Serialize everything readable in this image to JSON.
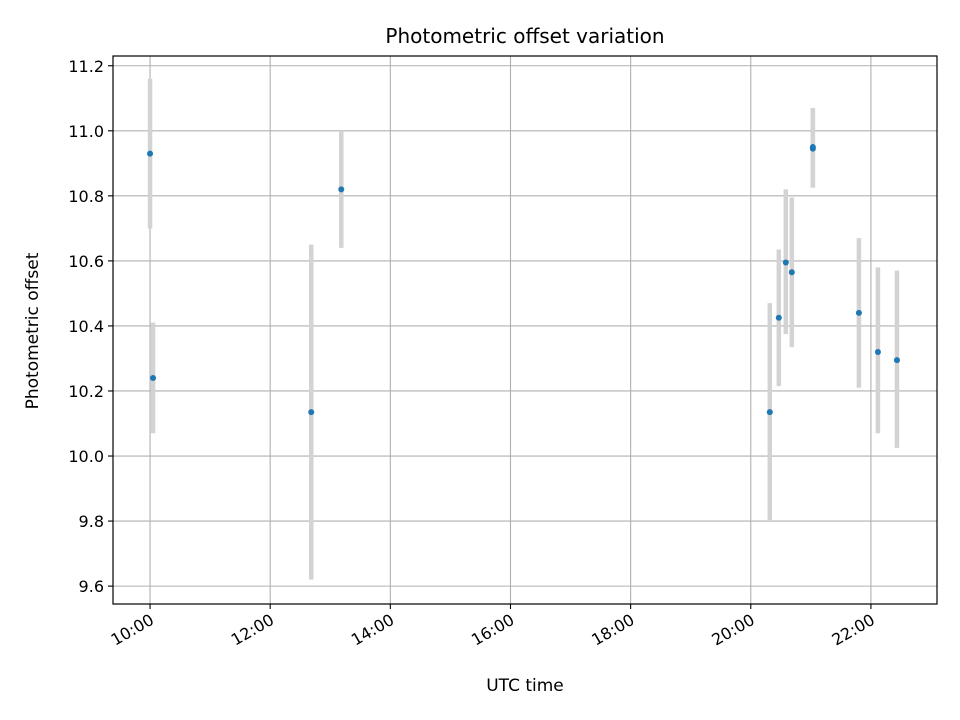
{
  "chart_data": {
    "type": "scatter",
    "title": "Photometric offset variation",
    "xlabel": "UTC time",
    "ylabel": "Photometric offset",
    "x_tick_labels": [
      "10:00",
      "12:00",
      "14:00",
      "16:00",
      "18:00",
      "20:00",
      "22:00"
    ],
    "y_tick_labels": [
      "9.6",
      "9.8",
      "10.0",
      "10.2",
      "10.4",
      "10.6",
      "10.8",
      "11.0",
      "11.2"
    ],
    "xlim": [
      "09:23",
      "23:06"
    ],
    "ylim": [
      9.545,
      11.23
    ],
    "grid": true,
    "point_color": "#1f77b4",
    "errorbar_color": "#d3d3d3",
    "points": [
      {
        "x": "10:00",
        "y": 10.93,
        "yerr_low": 10.7,
        "yerr_high": 11.16
      },
      {
        "x": "10:03",
        "y": 10.24,
        "yerr_low": 10.07,
        "yerr_high": 10.41
      },
      {
        "x": "12:41",
        "y": 10.135,
        "yerr_low": 9.62,
        "yerr_high": 10.65
      },
      {
        "x": "13:11",
        "y": 10.82,
        "yerr_low": 10.64,
        "yerr_high": 11.0
      },
      {
        "x": "20:19",
        "y": 10.135,
        "yerr_low": 9.8,
        "yerr_high": 10.47
      },
      {
        "x": "20:28",
        "y": 10.425,
        "yerr_low": 10.215,
        "yerr_high": 10.635
      },
      {
        "x": "20:35",
        "y": 10.595,
        "yerr_low": 10.375,
        "yerr_high": 10.82
      },
      {
        "x": "20:41",
        "y": 10.565,
        "yerr_low": 10.335,
        "yerr_high": 10.795
      },
      {
        "x": "21:02",
        "y": 10.945,
        "yerr_low": 10.825,
        "yerr_high": 11.07
      },
      {
        "x": "21:02",
        "y": 10.95,
        "yerr_low": 10.83,
        "yerr_high": 11.065
      },
      {
        "x": "21:48",
        "y": 10.44,
        "yerr_low": 10.21,
        "yerr_high": 10.67
      },
      {
        "x": "22:07",
        "y": 10.32,
        "yerr_low": 10.07,
        "yerr_high": 10.58
      },
      {
        "x": "22:26",
        "y": 10.295,
        "yerr_low": 10.025,
        "yerr_high": 10.57
      }
    ]
  }
}
